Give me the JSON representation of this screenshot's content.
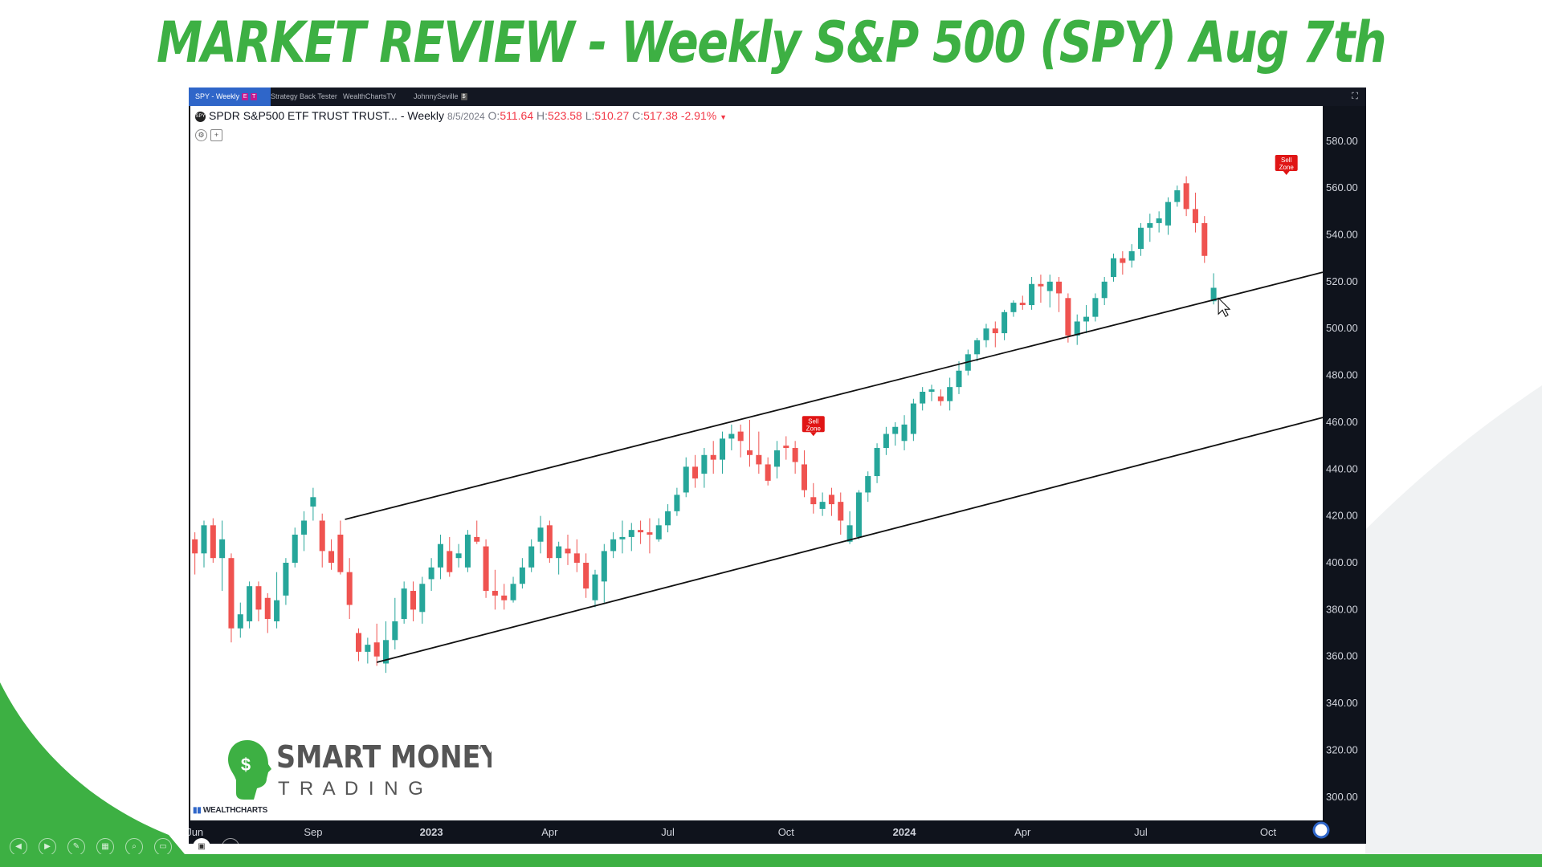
{
  "slide": {
    "title": "MARKET REVIEW - Weekly S&P 500 (SPY) Aug 7th",
    "accent_color": "#3db043"
  },
  "tabs": [
    {
      "label": "SPY - Weekly",
      "active": true
    },
    {
      "label": "Strategy Back Tester",
      "active": false
    },
    {
      "label": "WealthChartsTV",
      "active": false
    },
    {
      "label": "JohnnySeville",
      "active": false
    }
  ],
  "header": {
    "symbol_icon": "spy-logo-icon",
    "name": "SPDR S&P500 ETF TRUST TRUST... - Weekly",
    "date": "8/5/2024",
    "open_label": "O:",
    "open": "511.64",
    "high_label": "H:",
    "high": "523.58",
    "low_label": "L:",
    "low": "510.27",
    "close_label": "C:",
    "close": "517.38",
    "change": "-2.91%",
    "down_color": "#f23645"
  },
  "logo": {
    "line1": "SMART MONEY",
    "tm": "™",
    "line2": "T R A D I N G",
    "brand": "WEALTHCHARTS"
  },
  "chart_data": {
    "type": "candlestick",
    "timeframe": "Weekly",
    "up_color": "#26a69a",
    "down_color": "#ef5350",
    "ylim": [
      290,
      595
    ],
    "yticks": [
      "580.00",
      "560.00",
      "540.00",
      "520.00",
      "500.00",
      "480.00",
      "460.00",
      "440.00",
      "420.00",
      "400.00",
      "380.00",
      "360.00",
      "340.00",
      "320.00",
      "300.00"
    ],
    "xticks": [
      {
        "label": "Jun",
        "bold": false,
        "w": 0
      },
      {
        "label": "Sep",
        "bold": false,
        "w": 13
      },
      {
        "label": "2023",
        "bold": true,
        "w": 26
      },
      {
        "label": "Apr",
        "bold": false,
        "w": 39
      },
      {
        "label": "Jul",
        "bold": false,
        "w": 52
      },
      {
        "label": "Oct",
        "bold": false,
        "w": 65
      },
      {
        "label": "2024",
        "bold": true,
        "w": 78
      },
      {
        "label": "Apr",
        "bold": false,
        "w": 91
      },
      {
        "label": "Jul",
        "bold": false,
        "w": 104
      },
      {
        "label": "Oct",
        "bold": false,
        "w": 118
      }
    ],
    "candles": [
      [
        410,
        413,
        395,
        404
      ],
      [
        404,
        418,
        398,
        416
      ],
      [
        416,
        419,
        400,
        402
      ],
      [
        402,
        418,
        388,
        410
      ],
      [
        402,
        404,
        366,
        372
      ],
      [
        372,
        383,
        368,
        378
      ],
      [
        375,
        392,
        372,
        390
      ],
      [
        390,
        392,
        375,
        380
      ],
      [
        385,
        387,
        370,
        376
      ],
      [
        375,
        396,
        372,
        384
      ],
      [
        386,
        402,
        382,
        400
      ],
      [
        400,
        415,
        398,
        412
      ],
      [
        412,
        422,
        405,
        418
      ],
      [
        424,
        432,
        418,
        428
      ],
      [
        418,
        421,
        398,
        405
      ],
      [
        405,
        410,
        397,
        400
      ],
      [
        412,
        418,
        395,
        396
      ],
      [
        396,
        402,
        376,
        382
      ],
      [
        370,
        372,
        358,
        362
      ],
      [
        362,
        368,
        357,
        365
      ],
      [
        366,
        374,
        356,
        360
      ],
      [
        357,
        375,
        353,
        367
      ],
      [
        367,
        385,
        363,
        375
      ],
      [
        376,
        392,
        374,
        389
      ],
      [
        388,
        392,
        375,
        380
      ],
      [
        379,
        394,
        374,
        391
      ],
      [
        393,
        402,
        388,
        398
      ],
      [
        398,
        412,
        393,
        408
      ],
      [
        405,
        411,
        394,
        396
      ],
      [
        402,
        408,
        398,
        404
      ],
      [
        398,
        414,
        396,
        412
      ],
      [
        411,
        418,
        408,
        409
      ],
      [
        407,
        410,
        385,
        388
      ],
      [
        388,
        397,
        380,
        386
      ],
      [
        386,
        391,
        380,
        384
      ],
      [
        384,
        394,
        383,
        391
      ],
      [
        391,
        402,
        389,
        398
      ],
      [
        398,
        410,
        396,
        407
      ],
      [
        409,
        420,
        404,
        415
      ],
      [
        416,
        418,
        400,
        402
      ],
      [
        402,
        409,
        395,
        407
      ],
      [
        406,
        412,
        399,
        404
      ],
      [
        404,
        410,
        396,
        400
      ],
      [
        400,
        404,
        385,
        389
      ],
      [
        384,
        397,
        381,
        395
      ],
      [
        392,
        408,
        383,
        405
      ],
      [
        405,
        413,
        402,
        410
      ],
      [
        410,
        418,
        404,
        411
      ],
      [
        411,
        417,
        405,
        414
      ],
      [
        414,
        418,
        408,
        413
      ],
      [
        413,
        419,
        404,
        412
      ],
      [
        410,
        419,
        409,
        416
      ],
      [
        416,
        425,
        413,
        422
      ],
      [
        422,
        432,
        420,
        429
      ],
      [
        430,
        445,
        428,
        441
      ],
      [
        441,
        446,
        432,
        436
      ],
      [
        438,
        449,
        432,
        446
      ],
      [
        446,
        452,
        438,
        444
      ],
      [
        444,
        456,
        438,
        453
      ],
      [
        453,
        459,
        448,
        455
      ],
      [
        456,
        459,
        445,
        452
      ],
      [
        448,
        461,
        441,
        446
      ],
      [
        446,
        456,
        438,
        442
      ],
      [
        442,
        445,
        433,
        435
      ],
      [
        441,
        452,
        436,
        448
      ],
      [
        450,
        454,
        444,
        449
      ],
      [
        449,
        452,
        438,
        443
      ],
      [
        442,
        448,
        428,
        431
      ],
      [
        428,
        434,
        421,
        425
      ],
      [
        423,
        430,
        420,
        426
      ],
      [
        429,
        432,
        420,
        425
      ],
      [
        426,
        430,
        412,
        418
      ],
      [
        409,
        422,
        408,
        416
      ],
      [
        411,
        431,
        410,
        430
      ],
      [
        430,
        439,
        426,
        437
      ],
      [
        437,
        451,
        434,
        449
      ],
      [
        449,
        458,
        446,
        455
      ],
      [
        455,
        460,
        450,
        458
      ],
      [
        452,
        463,
        448,
        459
      ],
      [
        455,
        470,
        452,
        468
      ],
      [
        468,
        475,
        465,
        473
      ],
      [
        473,
        476,
        469,
        474
      ],
      [
        471,
        474,
        467,
        469
      ],
      [
        469,
        479,
        465,
        475
      ],
      [
        475,
        486,
        472,
        482
      ],
      [
        482,
        491,
        480,
        489
      ],
      [
        489,
        496,
        486,
        495
      ],
      [
        495,
        502,
        492,
        500
      ],
      [
        500,
        503,
        492,
        498
      ],
      [
        498,
        508,
        495,
        507
      ],
      [
        507,
        512,
        505,
        511
      ],
      [
        511,
        514,
        508,
        510
      ],
      [
        510,
        522,
        508,
        519
      ],
      [
        519,
        523,
        511,
        518
      ],
      [
        516,
        523,
        509,
        520
      ],
      [
        520,
        522,
        507,
        515
      ],
      [
        513,
        515,
        494,
        497
      ],
      [
        497,
        506,
        493,
        503
      ],
      [
        503,
        510,
        498,
        505
      ],
      [
        505,
        515,
        503,
        513
      ],
      [
        513,
        522,
        510,
        520
      ],
      [
        522,
        532,
        520,
        530
      ],
      [
        530,
        533,
        523,
        528
      ],
      [
        529,
        536,
        526,
        533
      ],
      [
        534,
        545,
        531,
        543
      ],
      [
        543,
        549,
        537,
        545
      ],
      [
        545,
        550,
        541,
        547
      ],
      [
        544,
        556,
        540,
        554
      ],
      [
        554,
        561,
        552,
        559
      ],
      [
        562,
        565,
        548,
        551
      ],
      [
        551,
        558,
        541,
        545
      ],
      [
        545,
        548,
        528,
        531
      ],
      [
        511.64,
        523.58,
        510.27,
        517.38
      ]
    ],
    "start_slot": 0,
    "x_range_slots": [
      0,
      124.5
    ],
    "trendlines": [
      {
        "name": "upper-channel-line",
        "from": [
          16.5,
          418.5
        ],
        "to": [
          139,
          524
        ]
      },
      {
        "name": "lower-channel-line",
        "from": [
          20,
          357.5
        ],
        "to": [
          139,
          462
        ]
      }
    ],
    "annotations": [
      {
        "text1": "Sell",
        "text2": "Zone",
        "slot": 68,
        "price": 458.5
      },
      {
        "text1": "Sell",
        "text2": "Zone",
        "slot": 120,
        "price": 570
      }
    ]
  }
}
